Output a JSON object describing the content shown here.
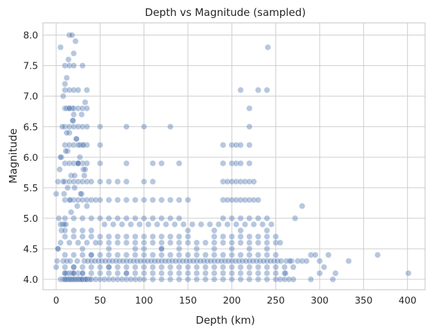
{
  "chart_data": {
    "type": "scatter",
    "title": "Depth vs Magnitude (sampled)",
    "xlabel": "Depth (km)",
    "ylabel": "Magnitude",
    "xlim": [
      -15,
      420
    ],
    "ylim": [
      3.83,
      8.2
    ],
    "x_ticks": [
      "0",
      "50",
      "100",
      "150",
      "200",
      "250",
      "300",
      "350",
      "400"
    ],
    "y_ticks": [
      "4.0",
      "4.5",
      "5.0",
      "5.5",
      "6.0",
      "6.5",
      "7.0",
      "7.5",
      "8.0"
    ],
    "grid": true,
    "point_color": "#4c72b0",
    "x": [
      5,
      8,
      10,
      10,
      12,
      15,
      15,
      17,
      20,
      22,
      25,
      28,
      30,
      33,
      35,
      10,
      12,
      15,
      18,
      20,
      25,
      30,
      10,
      12,
      14,
      16,
      18,
      20,
      22,
      24,
      26,
      28,
      30,
      33,
      35,
      38,
      40,
      45,
      50,
      55,
      60,
      65,
      70,
      75,
      80,
      85,
      90,
      95,
      100,
      110,
      120,
      130,
      140,
      150,
      160,
      170,
      180,
      190,
      200,
      210,
      220,
      230,
      240,
      250,
      255,
      260,
      265,
      270,
      10,
      20,
      30,
      40,
      50,
      60,
      70,
      80,
      90,
      100,
      110,
      120,
      130,
      140,
      150,
      160,
      170,
      180,
      190,
      200,
      210,
      220,
      230,
      240,
      250,
      260,
      10,
      20,
      30,
      40,
      50,
      60,
      70,
      80,
      90,
      100,
      110,
      120,
      130,
      140,
      150,
      160,
      170,
      180,
      190,
      200,
      210,
      220,
      230,
      240,
      250,
      260,
      270,
      10,
      20,
      30,
      40,
      50,
      60,
      70,
      80,
      90,
      100,
      110,
      120,
      130,
      140,
      150,
      160,
      170,
      180,
      190,
      200,
      210,
      220,
      230,
      240,
      250,
      10,
      20,
      30,
      40,
      50,
      60,
      70,
      80,
      90,
      100,
      110,
      120,
      130,
      140,
      150,
      180,
      190,
      200,
      210,
      220,
      230,
      240,
      250,
      10,
      20,
      30,
      40,
      50,
      60,
      70,
      80,
      90,
      100,
      110,
      120,
      130,
      140,
      190,
      200,
      210,
      220,
      230,
      240,
      10,
      15,
      20,
      25,
      30,
      35,
      40,
      45,
      50,
      60,
      70,
      80,
      90,
      100,
      110,
      120,
      130,
      140,
      150,
      190,
      195,
      200,
      205,
      210,
      215,
      220,
      225,
      230,
      10,
      15,
      20,
      25,
      30,
      35,
      40,
      50,
      60,
      70,
      80,
      100,
      110,
      190,
      195,
      200,
      205,
      210,
      215,
      220,
      225,
      10,
      15,
      20,
      25,
      30,
      35,
      50,
      80,
      110,
      120,
      140,
      190,
      200,
      205,
      210,
      220,
      10,
      15,
      20,
      25,
      30,
      35,
      50,
      190,
      200,
      205,
      210,
      220,
      10,
      15,
      20,
      25,
      30,
      50,
      80,
      100,
      130,
      220,
      10,
      12,
      15,
      18,
      20,
      25,
      30,
      35,
      220,
      10,
      15,
      20,
      25,
      35,
      210,
      230,
      240,
      10,
      15,
      20,
      30,
      241,
      5,
      15,
      18,
      22,
      20,
      14,
      12,
      10,
      8,
      6,
      4,
      2,
      0,
      6,
      3,
      2,
      1,
      0,
      2,
      5,
      8,
      12,
      16,
      24,
      32,
      36,
      40,
      44,
      48,
      52,
      56,
      60,
      64,
      68,
      72,
      76,
      80,
      84,
      88,
      92,
      96,
      100,
      104,
      108,
      112,
      116,
      120,
      124,
      128,
      132,
      136,
      140,
      144,
      148,
      152,
      156,
      160,
      164,
      168,
      172,
      176,
      180,
      184,
      188,
      192,
      196,
      200,
      204,
      208,
      212,
      216,
      220,
      224,
      228,
      232,
      236,
      240,
      244,
      248,
      252,
      256,
      262,
      268,
      275,
      280,
      285,
      290,
      295,
      300,
      305,
      310,
      315,
      318,
      333,
      366,
      401,
      261,
      266,
      272,
      280,
      290,
      300,
      20,
      40,
      60,
      80,
      100,
      120,
      140,
      160,
      180,
      200,
      220,
      240,
      30,
      60,
      90,
      120,
      150,
      180,
      210,
      240,
      10,
      20,
      30,
      40,
      50,
      60,
      70,
      80,
      90,
      100,
      110,
      120,
      130,
      140,
      150,
      160,
      170,
      180,
      190,
      200,
      210,
      220,
      230,
      240,
      250,
      255,
      15,
      25,
      35,
      45,
      55,
      65,
      75,
      85,
      95,
      105,
      115,
      125,
      135,
      145,
      155,
      165,
      175,
      185,
      195,
      205,
      215,
      225,
      235,
      245,
      5,
      7,
      9,
      11,
      13,
      15,
      17,
      19,
      21,
      23,
      25,
      27,
      29,
      31,
      33,
      35,
      5,
      7,
      9,
      11,
      13,
      15,
      17,
      19,
      21,
      23,
      25,
      27,
      29,
      31,
      33,
      35,
      8,
      12,
      16,
      20,
      24,
      28,
      32
    ],
    "y": [
      4.0,
      4.0,
      4.0,
      4.0,
      4.0,
      4.0,
      4.0,
      4.0,
      4.0,
      4.0,
      4.0,
      4.0,
      4.0,
      4.0,
      4.0,
      4.1,
      4.1,
      4.1,
      4.1,
      4.1,
      4.1,
      4.1,
      4.0,
      4.0,
      4.0,
      4.0,
      4.0,
      4.0,
      4.0,
      4.0,
      4.0,
      4.0,
      4.0,
      4.0,
      4.0,
      4.0,
      4.0,
      4.0,
      4.0,
      4.0,
      4.0,
      4.0,
      4.0,
      4.0,
      4.0,
      4.0,
      4.0,
      4.0,
      4.0,
      4.0,
      4.0,
      4.0,
      4.0,
      4.0,
      4.0,
      4.0,
      4.0,
      4.0,
      4.0,
      4.0,
      4.0,
      4.0,
      4.0,
      4.0,
      4.0,
      4.0,
      4.0,
      4.0,
      4.1,
      4.1,
      4.1,
      4.1,
      4.1,
      4.1,
      4.1,
      4.1,
      4.1,
      4.1,
      4.1,
      4.1,
      4.1,
      4.1,
      4.1,
      4.1,
      4.1,
      4.1,
      4.1,
      4.1,
      4.1,
      4.1,
      4.1,
      4.1,
      4.1,
      4.1,
      4.2,
      4.2,
      4.2,
      4.2,
      4.2,
      4.2,
      4.2,
      4.2,
      4.2,
      4.2,
      4.2,
      4.2,
      4.2,
      4.2,
      4.2,
      4.2,
      4.2,
      4.2,
      4.2,
      4.2,
      4.2,
      4.2,
      4.2,
      4.2,
      4.2,
      4.2,
      4.2,
      4.4,
      4.4,
      4.4,
      4.4,
      4.4,
      4.4,
      4.4,
      4.4,
      4.4,
      4.4,
      4.4,
      4.4,
      4.4,
      4.4,
      4.4,
      4.4,
      4.4,
      4.4,
      4.4,
      4.4,
      4.4,
      4.4,
      4.4,
      4.4,
      4.4,
      4.7,
      4.7,
      4.7,
      4.7,
      4.7,
      4.7,
      4.7,
      4.7,
      4.7,
      4.7,
      4.7,
      4.7,
      4.7,
      4.7,
      4.7,
      4.7,
      4.7,
      4.7,
      4.7,
      4.7,
      4.7,
      4.7,
      4.7,
      5.0,
      5.0,
      5.0,
      5.0,
      5.0,
      5.0,
      5.0,
      5.0,
      5.0,
      5.0,
      5.0,
      5.0,
      5.0,
      5.0,
      5.0,
      5.0,
      5.0,
      5.0,
      5.0,
      5.0,
      5.3,
      5.3,
      5.3,
      5.3,
      5.3,
      5.3,
      5.3,
      5.3,
      5.3,
      5.3,
      5.3,
      5.3,
      5.3,
      5.3,
      5.3,
      5.3,
      5.3,
      5.3,
      5.3,
      5.3,
      5.3,
      5.3,
      5.3,
      5.3,
      5.3,
      5.3,
      5.3,
      5.3,
      5.6,
      5.6,
      5.6,
      5.6,
      5.6,
      5.6,
      5.6,
      5.6,
      5.6,
      5.6,
      5.6,
      5.6,
      5.6,
      5.6,
      5.6,
      5.6,
      5.6,
      5.6,
      5.6,
      5.6,
      5.6,
      5.9,
      5.9,
      5.9,
      5.9,
      5.9,
      5.9,
      5.9,
      5.9,
      5.9,
      5.9,
      5.9,
      5.9,
      5.9,
      5.9,
      5.9,
      5.9,
      6.2,
      6.2,
      6.2,
      6.2,
      6.2,
      6.2,
      6.2,
      6.2,
      6.2,
      6.2,
      6.2,
      6.2,
      6.5,
      6.5,
      6.5,
      6.5,
      6.5,
      6.5,
      6.5,
      6.5,
      6.5,
      6.5,
      6.8,
      6.8,
      6.8,
      6.8,
      6.8,
      6.8,
      6.8,
      6.8,
      6.8,
      7.1,
      7.1,
      7.1,
      7.1,
      7.1,
      7.1,
      7.1,
      7.1,
      7.5,
      7.5,
      7.5,
      7.5,
      7.8,
      7.8,
      8.0,
      8.0,
      7.9,
      7.7,
      7.6,
      7.3,
      7.2,
      7.0,
      6.0,
      5.8,
      5.6,
      5.4,
      4.8,
      5.0,
      4.5,
      4.3,
      4.2,
      4.5,
      4.6,
      4.3,
      4.3,
      4.3,
      4.3,
      4.3,
      4.3,
      4.3,
      4.3,
      4.3,
      4.3,
      4.3,
      4.3,
      4.3,
      4.3,
      4.3,
      4.3,
      4.3,
      4.3,
      4.3,
      4.3,
      4.3,
      4.3,
      4.3,
      4.3,
      4.3,
      4.3,
      4.3,
      4.3,
      4.3,
      4.3,
      4.3,
      4.3,
      4.3,
      4.3,
      4.3,
      4.3,
      4.3,
      4.3,
      4.3,
      4.3,
      4.3,
      4.3,
      4.3,
      4.3,
      4.3,
      4.3,
      4.3,
      4.3,
      4.3,
      4.3,
      4.3,
      4.3,
      4.3,
      4.3,
      4.3,
      4.3,
      4.3,
      4.3,
      4.3,
      4.3,
      4.3,
      4.3,
      4.3,
      4.3,
      4.3,
      4.3,
      4.4,
      4.4,
      4.3,
      4.2,
      4.4,
      4.0,
      4.1,
      4.3,
      4.4,
      4.1,
      4.1,
      4.3,
      5.0,
      5.2,
      4.0,
      4.1,
      4.2,
      4.4,
      4.2,
      4.1,
      4.5,
      4.5,
      4.5,
      4.5,
      4.5,
      4.5,
      4.5,
      4.5,
      4.5,
      4.5,
      4.5,
      4.5,
      4.8,
      4.8,
      4.8,
      4.8,
      4.8,
      4.8,
      4.8,
      4.8,
      4.6,
      4.6,
      4.6,
      4.6,
      4.6,
      4.6,
      4.6,
      4.6,
      4.6,
      4.6,
      4.6,
      4.6,
      4.6,
      4.6,
      4.6,
      4.6,
      4.6,
      4.6,
      4.6,
      4.6,
      4.6,
      4.6,
      4.6,
      4.6,
      4.6,
      4.6,
      4.9,
      4.9,
      4.9,
      4.9,
      4.9,
      4.9,
      4.9,
      4.9,
      4.9,
      4.9,
      4.9,
      4.9,
      4.9,
      4.9,
      4.9,
      4.9,
      4.9,
      4.9,
      4.9,
      4.9,
      4.9,
      4.9,
      4.9,
      4.9,
      6.1,
      6.4,
      5.7,
      6.6,
      5.5,
      6.3,
      5.9,
      6.2,
      6.7,
      5.8,
      6.9,
      5.2,
      6.0,
      6.5,
      5.4,
      6.1,
      5.5,
      6.8,
      5.1,
      6.6,
      5.7,
      6.3,
      5.9,
      6.0,
      5.4,
      6.2,
      5.8,
      6.5,
      5.6,
      6.4,
      5.3,
      6.7,
      5.2,
      5.4,
      5.7
    ]
  }
}
